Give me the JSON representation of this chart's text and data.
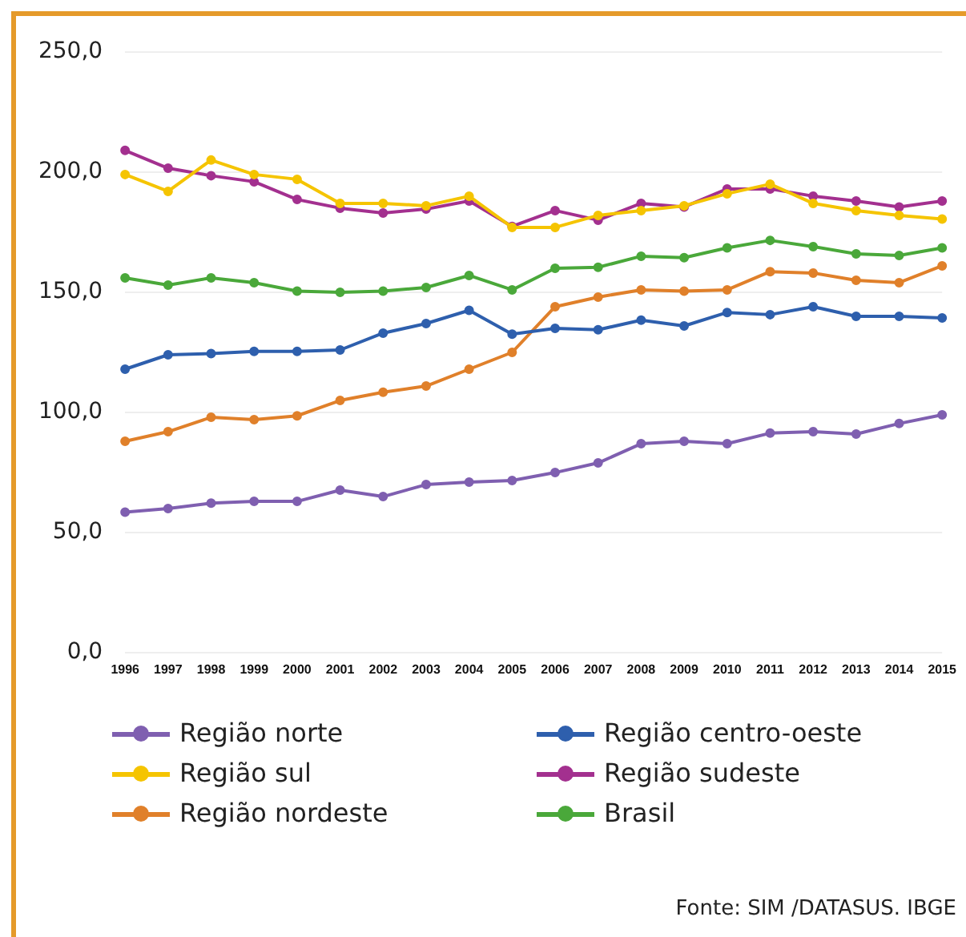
{
  "chart_data": {
    "type": "line",
    "categories": [
      "1996",
      "1997",
      "1998",
      "1999",
      "2000",
      "2001",
      "2002",
      "2003",
      "2004",
      "2005",
      "2006",
      "2007",
      "2008",
      "2009",
      "2010",
      "2011",
      "2012",
      "2013",
      "2014",
      "2015"
    ],
    "series": [
      {
        "name": "Região norte",
        "color": "#7f5fb0",
        "values": [
          58.5,
          60,
          62.3,
          63,
          63,
          67.7,
          65,
          70,
          71,
          71.7,
          75,
          79,
          87,
          88,
          87,
          91.4,
          92,
          91,
          95.4,
          99
        ]
      },
      {
        "name": "Região centro-oeste",
        "color": "#2e5fad",
        "values": [
          118,
          124,
          124.5,
          125.4,
          125.4,
          126,
          133,
          137,
          142.5,
          132.6,
          135,
          134.4,
          138.4,
          136,
          141.6,
          140.7,
          144,
          140,
          140,
          139.3
        ]
      },
      {
        "name": "Região sul",
        "color": "#f5c400",
        "values": [
          199,
          192,
          205,
          199,
          197,
          187,
          187,
          186,
          190,
          177,
          177,
          182,
          184,
          186,
          191,
          195,
          187,
          184,
          182,
          180.5
        ]
      },
      {
        "name": "Região sudeste",
        "color": "#a3308f",
        "values": [
          209,
          201.6,
          198.5,
          196,
          188.6,
          185,
          183,
          184.6,
          188,
          177.4,
          184,
          180,
          187,
          185.5,
          193,
          193,
          190,
          188,
          185.5,
          188
        ]
      },
      {
        "name": "Região nordeste",
        "color": "#e0802a",
        "values": [
          88,
          92,
          98,
          97,
          98.6,
          105,
          108.4,
          111,
          118,
          125,
          144,
          148,
          151,
          150.5,
          151,
          158.6,
          158,
          155,
          154,
          161
        ]
      },
      {
        "name": "Brasil",
        "color": "#4aa83a",
        "values": [
          156,
          153,
          156,
          154,
          150.5,
          150,
          150.5,
          152,
          157,
          151,
          160,
          160.4,
          165,
          164.4,
          168.5,
          171.6,
          169,
          166,
          165.3,
          168.5
        ]
      }
    ],
    "ylim": [
      0,
      250
    ],
    "yticks": [
      {
        "value": 0,
        "label": "0,0"
      },
      {
        "value": 50,
        "label": "50,0"
      },
      {
        "value": 100,
        "label": "100,0"
      },
      {
        "value": 150,
        "label": "150,0"
      },
      {
        "value": 200,
        "label": "200,0"
      },
      {
        "value": 250,
        "label": "250,0"
      }
    ],
    "grid": "y",
    "legend": "bottom",
    "marker": "circle",
    "line_style": "solid",
    "annotations": [
      "Fonte: SIM /DATASUS. IBGE"
    ]
  }
}
